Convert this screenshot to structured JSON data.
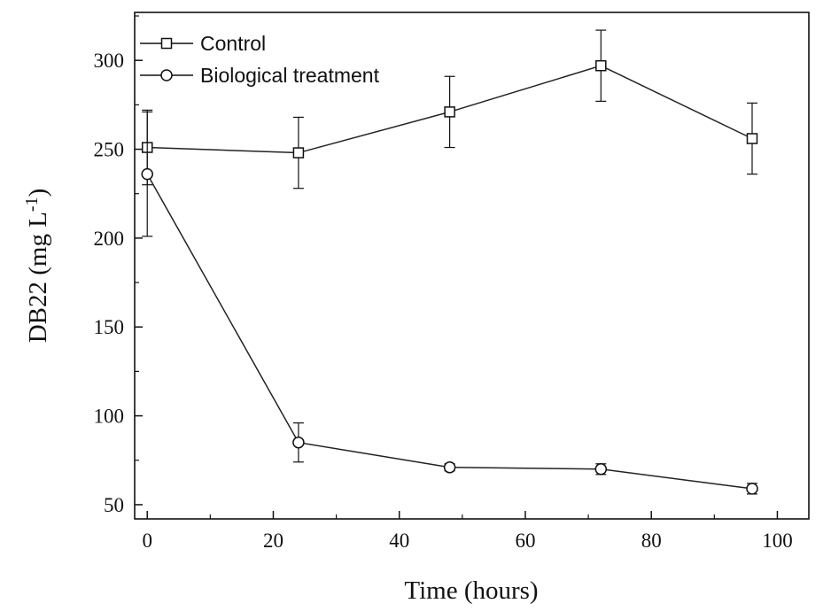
{
  "chart_data": {
    "type": "line",
    "xlabel": "Time (hours)",
    "ylabel": "DB22 (mg L",
    "ylabel_superscript": "-1",
    "ylabel_suffix": ")",
    "xlim": [
      -2,
      105
    ],
    "ylim": [
      42,
      327
    ],
    "x_ticks": [
      0,
      20,
      40,
      60,
      80,
      100
    ],
    "y_ticks": [
      50,
      100,
      150,
      200,
      250,
      300
    ],
    "legend_position": "top-left",
    "grid": false,
    "series": [
      {
        "name": "Control",
        "marker": "square",
        "color": "#222222",
        "x": [
          0,
          24,
          48,
          72,
          96
        ],
        "y": [
          251,
          248,
          271,
          297,
          256
        ],
        "error": [
          21,
          20,
          20,
          20,
          20
        ]
      },
      {
        "name": "Biological treatment",
        "marker": "circle",
        "color": "#222222",
        "x": [
          0,
          24,
          48,
          72,
          96
        ],
        "y": [
          236,
          85,
          71,
          70,
          59
        ],
        "error": [
          35,
          11,
          2,
          3,
          3
        ]
      }
    ]
  }
}
